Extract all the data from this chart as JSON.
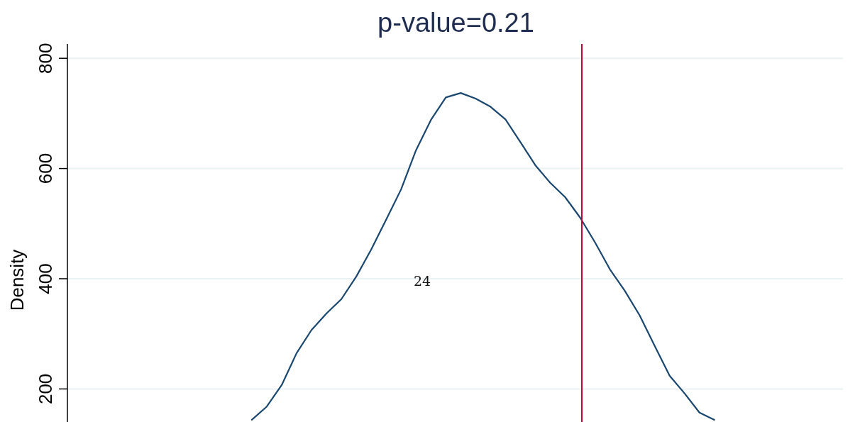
{
  "chart_data": {
    "type": "line",
    "title": "p-value=0.21",
    "ylabel": "Density",
    "categories": [
      null,
      null,
      null,
      null,
      null,
      null,
      null,
      null,
      null,
      null,
      null,
      null,
      null,
      null,
      null,
      null,
      null,
      null,
      null,
      null,
      null,
      null,
      null,
      null,
      null,
      null,
      null,
      null,
      null,
      null,
      null,
      null,
      null,
      null,
      null,
      null,
      null,
      null,
      null,
      null,
      null,
      null,
      null,
      null,
      null,
      null,
      null,
      null,
      null,
      null,
      null,
      null
    ],
    "series": [
      {
        "color": "#1a476f",
        "values": [
          null,
          null,
          null,
          null,
          null,
          null,
          null,
          null,
          null,
          null,
          null,
          null,
          144,
          168,
          207,
          265,
          307,
          337,
          363,
          404,
          453,
          507,
          562,
          633,
          688,
          729,
          737,
          727,
          712,
          689,
          648,
          606,
          574,
          548,
          511,
          466,
          417,
          378,
          333,
          278,
          224,
          192,
          157,
          144,
          null,
          null,
          null,
          null,
          null,
          null,
          null,
          null
        ]
      }
    ],
    "ylim": [
      140,
      826
    ],
    "yticks": [
      200,
      400,
      600,
      800
    ],
    "annotations": [
      "24"
    ],
    "grid": "y",
    "tick_labels": "y",
    "marker": "none",
    "line_style": "solid"
  }
}
